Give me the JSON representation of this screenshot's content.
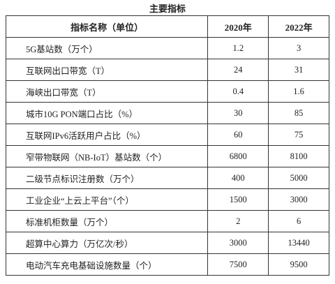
{
  "header": {
    "title": "主要指标"
  },
  "table": {
    "columns": [
      "指标名称（单位）",
      "2020年",
      "2022年"
    ],
    "rows": [
      [
        "5G基站数（万个）",
        "1.2",
        "3"
      ],
      [
        "互联网出口带宽（T）",
        "24",
        "31"
      ],
      [
        "海峡出口带宽（T）",
        "0.4",
        "1.6"
      ],
      [
        "城市10G PON端口占比（%）",
        "30",
        "85"
      ],
      [
        "互联网IPv6活跃用户占比（%）",
        "60",
        "75"
      ],
      [
        "窄带物联网（NB-IoT）基站数（个）",
        "6800",
        "8100"
      ],
      [
        "二级节点标识注册数（万个）",
        "400",
        "5000"
      ],
      [
        "工业企业“上云上平台”（个）",
        "1500",
        "3000"
      ],
      [
        "标准机柜数量（万个）",
        "2",
        "6"
      ],
      [
        "超算中心算力（万亿次/秒）",
        "3000",
        "13440"
      ],
      [
        "电动汽车充电基础设施数量（个）",
        "7500",
        "9500"
      ]
    ]
  }
}
